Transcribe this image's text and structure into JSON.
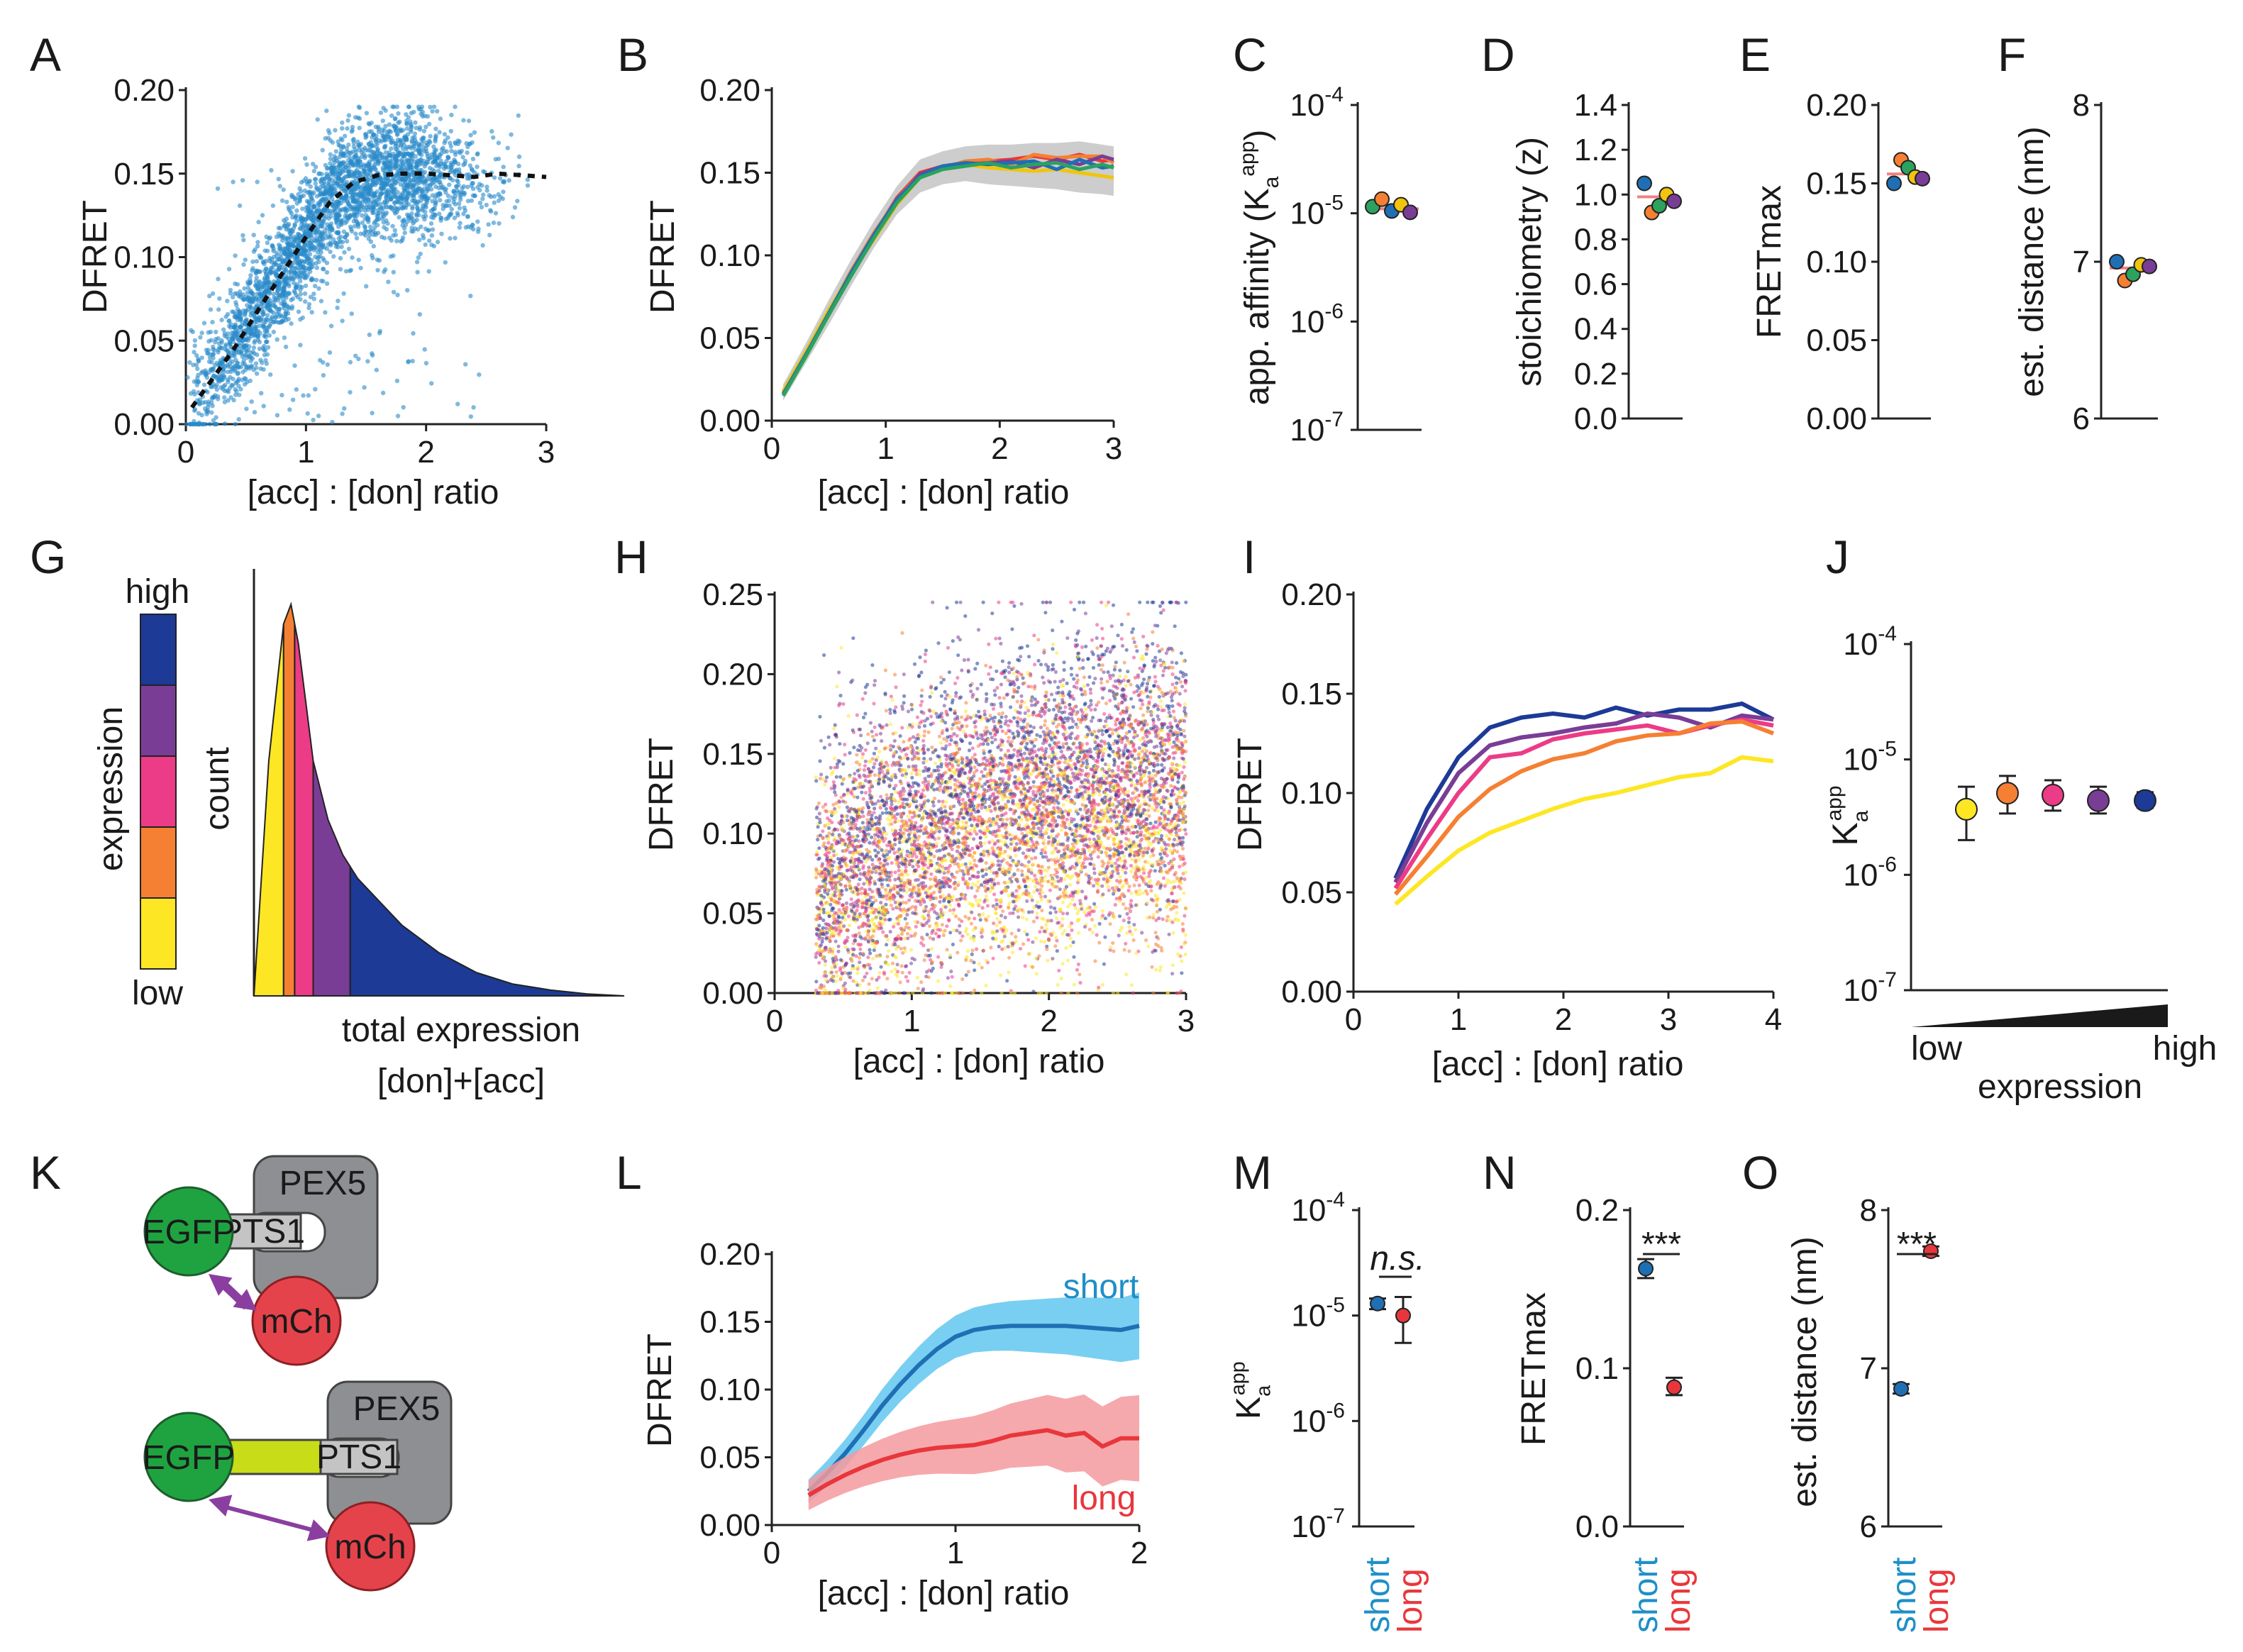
{
  "colors": {
    "scatter_blue": "#2a8ac9",
    "blue_line": "#1f6fb4",
    "red_line": "#e8373c",
    "short": "#1e8fc8",
    "long": "#e8373c",
    "expression": [
      "#fde725",
      "#f58033",
      "#ec3b87",
      "#7a3d96",
      "#1c3a96"
    ],
    "expression_ramp_top": "#1a1a1a",
    "fit_line": "#f08080",
    "cyan_band": "#62c7ee",
    "red_band": "#f59a9f",
    "gray_band": "#c8c8c8",
    "egfp": "#1fa341",
    "mch": "#e5434b",
    "pex5": "#8e8f92",
    "linker": "#c8dd17",
    "arrow": "#8a3fa0"
  },
  "chart_data": [
    {
      "id": "A",
      "panel_label": "A",
      "type": "scatter",
      "xlabel": "[acc] : [don] ratio",
      "ylabel": "DFRET",
      "xlim": [
        0,
        3
      ],
      "ylim": [
        0,
        0.2
      ],
      "xticks": [
        "0",
        "1",
        "2",
        "3"
      ],
      "yticks": [
        "0.00",
        "0.05",
        "0.10",
        "0.15",
        "0.20"
      ],
      "series": [
        {
          "name": "binned mean",
          "x": [
            0.05,
            0.2,
            0.4,
            0.6,
            0.8,
            1.0,
            1.2,
            1.4,
            1.6,
            1.8,
            2.0,
            2.2,
            2.4,
            2.6,
            2.8,
            3.0
          ],
          "y": [
            0.01,
            0.025,
            0.045,
            0.068,
            0.09,
            0.112,
            0.133,
            0.145,
            0.149,
            0.15,
            0.15,
            0.149,
            0.148,
            0.15,
            0.149,
            0.148
          ]
        }
      ]
    },
    {
      "id": "B",
      "panel_label": "B",
      "type": "line",
      "xlabel": "[acc] : [don] ratio",
      "ylabel": "DFRET",
      "xlim": [
        0,
        3
      ],
      "ylim": [
        0,
        0.2
      ],
      "xticks": [
        "0",
        "1",
        "2",
        "3"
      ],
      "yticks": [
        "0.00",
        "0.05",
        "0.10",
        "0.15",
        "0.20"
      ],
      "x": [
        0.1,
        0.3,
        0.5,
        0.7,
        0.9,
        1.1,
        1.3,
        1.5,
        1.7,
        1.9,
        2.1,
        2.3,
        2.5,
        2.7,
        2.9,
        3.0
      ],
      "series": [
        {
          "name": "red",
          "color": "#e8373c",
          "y": [
            0.016,
            0.04,
            0.065,
            0.09,
            0.113,
            0.135,
            0.15,
            0.154,
            0.156,
            0.157,
            0.158,
            0.16,
            0.158,
            0.161,
            0.157,
            0.158
          ]
        },
        {
          "name": "orange",
          "color": "#f58033",
          "y": [
            0.017,
            0.041,
            0.066,
            0.091,
            0.114,
            0.134,
            0.149,
            0.153,
            0.157,
            0.158,
            0.155,
            0.161,
            0.159,
            0.16,
            0.16,
            0.156
          ]
        },
        {
          "name": "yellow",
          "color": "#f1c40f",
          "y": [
            0.018,
            0.042,
            0.067,
            0.09,
            0.11,
            0.131,
            0.147,
            0.152,
            0.155,
            0.153,
            0.152,
            0.151,
            0.152,
            0.15,
            0.148,
            0.147
          ]
        },
        {
          "name": "purple",
          "color": "#7a3d96",
          "y": [
            0.016,
            0.04,
            0.064,
            0.089,
            0.112,
            0.133,
            0.149,
            0.154,
            0.155,
            0.156,
            0.157,
            0.153,
            0.158,
            0.155,
            0.16,
            0.158
          ]
        },
        {
          "name": "blue",
          "color": "#1f6fb4",
          "y": [
            0.016,
            0.04,
            0.065,
            0.09,
            0.113,
            0.134,
            0.148,
            0.154,
            0.156,
            0.155,
            0.156,
            0.157,
            0.152,
            0.158,
            0.153,
            0.154
          ]
        },
        {
          "name": "green",
          "color": "#2ca25f",
          "y": [
            0.015,
            0.039,
            0.064,
            0.088,
            0.111,
            0.132,
            0.147,
            0.152,
            0.154,
            0.156,
            0.153,
            0.155,
            0.156,
            0.152,
            0.155,
            0.153
          ]
        }
      ],
      "band": {
        "color": "#c8c8c8",
        "lo": [
          0.012,
          0.035,
          0.058,
          0.082,
          0.105,
          0.125,
          0.138,
          0.143,
          0.145,
          0.143,
          0.142,
          0.141,
          0.14,
          0.138,
          0.137,
          0.136
        ],
        "hi": [
          0.022,
          0.047,
          0.073,
          0.098,
          0.121,
          0.142,
          0.158,
          0.163,
          0.166,
          0.167,
          0.167,
          0.168,
          0.168,
          0.169,
          0.167,
          0.166
        ]
      }
    },
    {
      "id": "C",
      "panel_label": "C",
      "type": "dotplot",
      "scale": "log",
      "ylabel": "app. affinity (K_a^app)",
      "ylim_exp": [
        -7,
        -4
      ],
      "ytick_exps": [
        "-7",
        "-6",
        "-5",
        "-4"
      ],
      "values": [
        1.15e-05,
        1.35e-05,
        1.05e-05,
        1.2e-05,
        1.02e-05
      ],
      "point_colors": [
        "#2ca25f",
        "#f58033",
        "#1f6fb4",
        "#f1c40f",
        "#7a3d96"
      ],
      "mean": 1.1e-05
    },
    {
      "id": "D",
      "panel_label": "D",
      "type": "dotplot",
      "scale": "linear",
      "ylabel": "stoichiometry (z)",
      "ylim": [
        0,
        1.4
      ],
      "yticks": [
        "0.0",
        "0.2",
        "0.4",
        "0.6",
        "0.8",
        "1.0",
        "1.2",
        "1.4"
      ],
      "values": [
        1.05,
        0.92,
        0.95,
        1.0,
        0.97
      ],
      "point_colors": [
        "#1f6fb4",
        "#f58033",
        "#2ca25f",
        "#f1c40f",
        "#7a3d96"
      ],
      "mean": 0.99
    },
    {
      "id": "E",
      "panel_label": "E",
      "type": "dotplot",
      "scale": "linear",
      "ylabel": "FRETmax",
      "ylim": [
        0,
        0.2
      ],
      "yticks": [
        "0.00",
        "0.05",
        "0.10",
        "0.15",
        "0.20"
      ],
      "values": [
        0.15,
        0.165,
        0.16,
        0.154,
        0.153
      ],
      "point_colors": [
        "#1f6fb4",
        "#f58033",
        "#2ca25f",
        "#f1c40f",
        "#7a3d96"
      ],
      "mean": 0.156
    },
    {
      "id": "F",
      "panel_label": "F",
      "type": "dotplot",
      "scale": "linear",
      "ylabel": "est. distance (nm)",
      "ylim": [
        6,
        8
      ],
      "yticks": [
        "6",
        "7",
        "8"
      ],
      "values": [
        7.0,
        6.88,
        6.92,
        6.98,
        6.97
      ],
      "point_colors": [
        "#1f6fb4",
        "#f58033",
        "#2ca25f",
        "#f1c40f",
        "#7a3d96"
      ],
      "mean": 6.96
    },
    {
      "id": "G",
      "panel_label": "G",
      "type": "area",
      "xlabel": "total expression",
      "xlabel2": "[don]+[acc]",
      "ylabel": "count",
      "legend_title": "expression",
      "legend_high": "high",
      "legend_low": "low",
      "x": [
        0,
        0.04,
        0.08,
        0.1,
        0.12,
        0.14,
        0.16,
        0.2,
        0.24,
        0.28,
        0.34,
        0.4,
        0.5,
        0.6,
        0.7,
        0.8,
        0.9,
        1.0
      ],
      "y": [
        0,
        0.6,
        0.95,
        1.0,
        0.9,
        0.75,
        0.6,
        0.45,
        0.36,
        0.3,
        0.24,
        0.18,
        0.11,
        0.06,
        0.03,
        0.015,
        0.005,
        0
      ],
      "quantile_bounds": [
        0.08,
        0.11,
        0.16,
        0.26
      ],
      "segment_colors": [
        "#fde725",
        "#f58033",
        "#ec3b87",
        "#7a3d96",
        "#1c3a96"
      ]
    },
    {
      "id": "H",
      "panel_label": "H",
      "type": "scatter",
      "xlabel": "[acc] : [don] ratio",
      "ylabel": "DFRET",
      "xlim": [
        0,
        3
      ],
      "ylim": [
        0,
        0.25
      ],
      "xticks": [
        "0",
        "1",
        "2",
        "3"
      ],
      "yticks": [
        "0.00",
        "0.05",
        "0.10",
        "0.15",
        "0.20",
        "0.25"
      ],
      "series_colors": [
        "#fde725",
        "#f58033",
        "#ec3b87",
        "#7a3d96",
        "#1c3a96"
      ],
      "series_means": [
        0.085,
        0.1,
        0.11,
        0.12,
        0.13
      ]
    },
    {
      "id": "I",
      "panel_label": "I",
      "type": "line",
      "xlabel": "[acc] : [don] ratio",
      "ylabel": "DFRET",
      "xlim": [
        0,
        4
      ],
      "ylim": [
        0,
        0.2
      ],
      "xticks": [
        "0",
        "1",
        "2",
        "3",
        "4"
      ],
      "yticks": [
        "0.00",
        "0.05",
        "0.10",
        "0.15",
        "0.20"
      ],
      "x": [
        0.4,
        0.7,
        1.0,
        1.3,
        1.6,
        1.9,
        2.2,
        2.5,
        2.8,
        3.1,
        3.4,
        3.7,
        4.0
      ],
      "series": [
        {
          "name": "q5",
          "color": "#1c3a96",
          "y": [
            0.057,
            0.092,
            0.118,
            0.133,
            0.138,
            0.14,
            0.138,
            0.143,
            0.139,
            0.142,
            0.142,
            0.145,
            0.137
          ]
        },
        {
          "name": "q4",
          "color": "#7a3d96",
          "y": [
            0.055,
            0.085,
            0.11,
            0.124,
            0.128,
            0.13,
            0.133,
            0.135,
            0.14,
            0.138,
            0.133,
            0.139,
            0.137
          ]
        },
        {
          "name": "q3",
          "color": "#ec3b87",
          "y": [
            0.052,
            0.077,
            0.1,
            0.118,
            0.12,
            0.127,
            0.13,
            0.132,
            0.134,
            0.13,
            0.134,
            0.137,
            0.134
          ]
        },
        {
          "name": "q2",
          "color": "#f58033",
          "y": [
            0.049,
            0.068,
            0.088,
            0.102,
            0.111,
            0.117,
            0.12,
            0.126,
            0.129,
            0.13,
            0.135,
            0.136,
            0.13
          ]
        },
        {
          "name": "q1",
          "color": "#fde725",
          "y": [
            0.044,
            0.058,
            0.071,
            0.08,
            0.086,
            0.092,
            0.097,
            0.1,
            0.104,
            0.108,
            0.11,
            0.118,
            0.116
          ]
        }
      ]
    },
    {
      "id": "J",
      "panel_label": "J",
      "type": "dotplot",
      "scale": "log",
      "ylabel": "K_a^app",
      "ylim_exp": [
        -7,
        -4
      ],
      "ytick_exps": [
        "-7",
        "-6",
        "-5",
        "-4"
      ],
      "xlabel": "expression",
      "xlow": "low",
      "xhigh": "high",
      "values": [
        3.7e-06,
        5.1e-06,
        4.9e-06,
        4.4e-06,
        4.4e-06
      ],
      "err_lo": [
        2e-06,
        3.4e-06,
        3.6e-06,
        3.4e-06,
        3.8e-06
      ],
      "err_hi": [
        5.8e-06,
        7.2e-06,
        6.6e-06,
        5.8e-06,
        5.2e-06
      ],
      "point_colors": [
        "#fde725",
        "#f58033",
        "#ec3b87",
        "#7a3d96",
        "#1c3a96"
      ]
    },
    {
      "id": "L",
      "panel_label": "L",
      "type": "line",
      "xlabel": "[acc] : [don] ratio",
      "ylabel": "DFRET",
      "xlim": [
        0,
        2
      ],
      "ylim": [
        0,
        0.2
      ],
      "xticks": [
        "0",
        "1",
        "2"
      ],
      "yticks": [
        "0.00",
        "0.05",
        "0.10",
        "0.15",
        "0.20"
      ],
      "x": [
        0.2,
        0.3,
        0.4,
        0.5,
        0.6,
        0.7,
        0.8,
        0.9,
        1.0,
        1.1,
        1.2,
        1.3,
        1.4,
        1.5,
        1.6,
        1.7,
        1.8,
        1.9,
        2.0
      ],
      "series": [
        {
          "name": "short",
          "label": "short",
          "color": "#1f6fb4",
          "band_color": "#62c7ee",
          "y": [
            0.025,
            0.038,
            0.053,
            0.07,
            0.088,
            0.104,
            0.118,
            0.13,
            0.139,
            0.144,
            0.146,
            0.147,
            0.147,
            0.147,
            0.147,
            0.146,
            0.145,
            0.144,
            0.147
          ],
          "band": 0.017
        },
        {
          "name": "long",
          "label": "long",
          "color": "#e8373c",
          "band_color": "#f59a9f",
          "y": [
            0.022,
            0.03,
            0.037,
            0.043,
            0.048,
            0.052,
            0.055,
            0.057,
            0.058,
            0.059,
            0.062,
            0.066,
            0.068,
            0.07,
            0.066,
            0.068,
            0.058,
            0.064,
            0.064
          ],
          "band": 0.022
        }
      ]
    },
    {
      "id": "M",
      "panel_label": "M",
      "type": "dotplot",
      "scale": "log",
      "ylabel": "K_a^app",
      "ylim_exp": [
        -7,
        -4
      ],
      "ytick_exps": [
        "-7",
        "-6",
        "-5",
        "-4"
      ],
      "categories": [
        "short",
        "long"
      ],
      "values": [
        1.3e-05,
        1e-05
      ],
      "err_lo": [
        1.15e-05,
        5.5e-06
      ],
      "err_hi": [
        1.45e-05,
        1.5e-05
      ],
      "point_colors": [
        "#1f6fb4",
        "#e8373c"
      ],
      "annotation": "n.s."
    },
    {
      "id": "N",
      "panel_label": "N",
      "type": "dotplot",
      "scale": "linear",
      "ylabel": "FRETmax",
      "ylim": [
        0,
        0.2
      ],
      "yticks": [
        "0.0",
        "0.1",
        "0.2"
      ],
      "categories": [
        "short",
        "long"
      ],
      "values": [
        0.163,
        0.088
      ],
      "err_lo": [
        0.157,
        0.083
      ],
      "err_hi": [
        0.169,
        0.094
      ],
      "point_colors": [
        "#1f6fb4",
        "#e8373c"
      ],
      "annotation": "***"
    },
    {
      "id": "O",
      "panel_label": "O",
      "type": "dotplot",
      "scale": "linear",
      "ylabel": "est. distance (nm)",
      "ylim": [
        6,
        8
      ],
      "yticks": [
        "6",
        "7",
        "8"
      ],
      "categories": [
        "short",
        "long"
      ],
      "values": [
        6.87,
        7.74
      ],
      "err_lo": [
        6.84,
        7.71
      ],
      "err_hi": [
        6.9,
        7.77
      ],
      "point_colors": [
        "#1f6fb4",
        "#e8373c"
      ],
      "annotation": "***"
    }
  ],
  "diagram_K": {
    "panel_label": "K",
    "pex5": "PEX5",
    "pts1": "PTS1",
    "egfp": "EGFP",
    "mch": "mCh"
  }
}
